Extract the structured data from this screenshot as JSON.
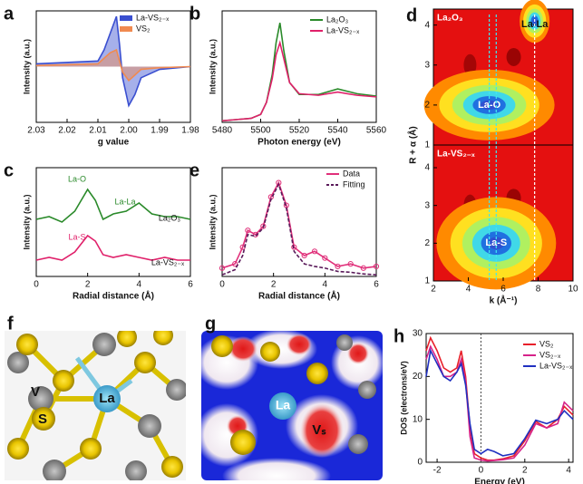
{
  "chart_data": [
    {
      "type": "line",
      "panel": "a",
      "xlabel": "g value",
      "ylabel": "Intensity (a.u.)",
      "xlim": [
        2.03,
        1.98
      ],
      "xticks": [
        2.03,
        2.02,
        2.01,
        {
          "value": 2,
          "label": "2.00"
        },
        1.99,
        1.98
      ],
      "ylim": [
        -1,
        1
      ],
      "x": [
        2.03,
        2.01,
        2.008,
        2.006,
        2.004,
        2.003,
        2.002,
        2.0,
        1.998,
        1.996,
        1.99,
        1.98
      ],
      "series": [
        {
          "name": "La-VS₂₋ₓ",
          "color": "#3a4fd0",
          "fill": true,
          "values": [
            0.05,
            0.1,
            0.3,
            0.6,
            0.9,
            0.4,
            -0.2,
            -0.7,
            -0.5,
            -0.2,
            -0.05,
            0
          ]
        },
        {
          "name": "VS₂",
          "color": "#f08a50",
          "fill": true,
          "values": [
            0.02,
            0.05,
            0.15,
            0.25,
            0.3,
            0.1,
            -0.1,
            -0.25,
            -0.15,
            -0.05,
            -0.02,
            0
          ]
        }
      ]
    },
    {
      "type": "line",
      "panel": "b",
      "xlabel": "Photon energy (eV)",
      "ylabel": "Intensity (a.u.)",
      "xlim": [
        5480,
        5560
      ],
      "xticks": [
        5480,
        5500,
        5520,
        5540,
        5560
      ],
      "ylim": [
        0,
        1.4
      ],
      "x": [
        5480,
        5495,
        5500,
        5503,
        5506,
        5508,
        5510,
        5512,
        5515,
        5520,
        5530,
        5540,
        5550,
        5560
      ],
      "series": [
        {
          "name": "La₂O₃",
          "color": "#2a8a2a",
          "values": [
            0.02,
            0.05,
            0.1,
            0.25,
            0.6,
            1.0,
            1.25,
            0.9,
            0.5,
            0.35,
            0.35,
            0.42,
            0.36,
            0.33
          ]
        },
        {
          "name": "La-VS₂₋ₓ",
          "color": "#e0206a",
          "values": [
            0.02,
            0.05,
            0.1,
            0.25,
            0.55,
            0.85,
            1.0,
            0.8,
            0.5,
            0.36,
            0.34,
            0.38,
            0.34,
            0.32
          ]
        }
      ]
    },
    {
      "type": "line",
      "panel": "c",
      "xlabel": "Radial distance (Å)",
      "ylabel": "Intensity (a.u.)",
      "xlim": [
        0,
        6
      ],
      "xticks": [
        0,
        2,
        4,
        6
      ],
      "ylim": [
        0,
        2
      ],
      "annotations": [
        "La-O",
        "La-La",
        "La-S",
        "La₂O₃",
        "La-VS₂₋ₓ"
      ],
      "x": [
        0,
        0.5,
        1,
        1.5,
        2,
        2.3,
        2.6,
        3,
        3.5,
        4,
        4.5,
        5,
        5.5,
        6
      ],
      "series": [
        {
          "color": "#2a8a2a",
          "values": [
            1.05,
            1.1,
            1.0,
            1.2,
            1.6,
            1.4,
            1.05,
            1.15,
            1.2,
            1.35,
            1.15,
            1.1,
            1.1,
            1.05
          ]
        },
        {
          "color": "#e0206a",
          "values": [
            0.3,
            0.35,
            0.3,
            0.45,
            0.75,
            0.65,
            0.4,
            0.35,
            0.4,
            0.35,
            0.3,
            0.35,
            0.3,
            0.3
          ]
        }
      ]
    },
    {
      "type": "wavelet",
      "panel": "d",
      "xlabel": "k (Å⁻¹)",
      "ylabel": "R + α (Å)",
      "xlim": [
        2,
        10
      ],
      "xticks": [
        2,
        4,
        6,
        8,
        10
      ],
      "subplots": [
        {
          "label": "La₂O₃",
          "ylim": [
            1,
            4.4
          ],
          "yticks": [
            1,
            2,
            3,
            4
          ],
          "peaks": [
            {
              "label": "La-O",
              "k": 5.2,
              "r": 2.0
            },
            {
              "label": "La-La",
              "k": 7.8,
              "r": 4.1
            }
          ]
        },
        {
          "label": "La-VS₂₋ₓ",
          "ylim": [
            1,
            4.6
          ],
          "yticks": [
            1,
            2,
            3,
            4
          ],
          "peaks": [
            {
              "label": "La-S",
              "k": 5.6,
              "r": 2.0
            }
          ]
        }
      ]
    },
    {
      "type": "line",
      "panel": "e",
      "xlabel": "Radial distance (Å)",
      "ylabel": "Intensity (a.u.)",
      "xlim": [
        0,
        6
      ],
      "xticks": [
        0,
        2,
        4,
        6
      ],
      "ylim": [
        0,
        1.3
      ],
      "x": [
        0,
        0.5,
        0.8,
        1.0,
        1.3,
        1.6,
        1.9,
        2.2,
        2.5,
        2.8,
        3.2,
        3.6,
        4,
        4.5,
        5,
        5.5,
        6
      ],
      "series": [
        {
          "name": "Data",
          "color": "#e0307a",
          "markers": true,
          "values": [
            0.1,
            0.15,
            0.35,
            0.55,
            0.5,
            0.6,
            0.95,
            1.12,
            0.85,
            0.35,
            0.25,
            0.3,
            0.22,
            0.12,
            0.15,
            0.1,
            0.12
          ]
        },
        {
          "name": "Fitting",
          "color": "#5a1a5a",
          "dash": true,
          "values": [
            0.02,
            0.08,
            0.25,
            0.5,
            0.48,
            0.58,
            0.92,
            1.1,
            0.82,
            0.3,
            0.15,
            0.12,
            0.1,
            0.06,
            0.05,
            0.03,
            0.02
          ]
        }
      ]
    },
    {
      "type": "line",
      "panel": "h",
      "xlabel": "Energy (eV)",
      "ylabel": "DOS (electrons/eV)",
      "xlim": [
        -2.5,
        4.2
      ],
      "xticks": [
        -2,
        0,
        2,
        4
      ],
      "ylim": [
        0,
        30
      ],
      "yticks": [
        0,
        10,
        20,
        30
      ],
      "x": [
        -2.5,
        -2.3,
        -2,
        -1.7,
        -1.4,
        -1.1,
        -0.9,
        -0.7,
        -0.5,
        -0.3,
        0,
        0.3,
        0.6,
        1,
        1.5,
        2,
        2.5,
        3,
        3.5,
        3.8,
        4.2
      ],
      "series": [
        {
          "name": "VS₂",
          "color": "#e8202a",
          "values": [
            26,
            29,
            26,
            22,
            21,
            22,
            26,
            20,
            8,
            2,
            1,
            0.5,
            0.5,
            0.8,
            1.5,
            5,
            9.5,
            8,
            10,
            13,
            11
          ]
        },
        {
          "name": "VS₂₋ₓ",
          "color": "#d6238a",
          "values": [
            24,
            27,
            24,
            20,
            20,
            21,
            24,
            19,
            6,
            1,
            0.5,
            0.3,
            0.4,
            0.6,
            1,
            4,
            9,
            8,
            9,
            14,
            12
          ]
        },
        {
          "name": "La-VS₂₋ₓ",
          "color": "#2030c0",
          "values": [
            20,
            26,
            23,
            20,
            19,
            21,
            23,
            18,
            9,
            3,
            2,
            3,
            2.5,
            1.5,
            2,
            5.5,
            9.8,
            9,
            10,
            12,
            10
          ]
        }
      ]
    }
  ],
  "figure_panels": [
    {
      "panel": "f",
      "labels": [
        "V",
        "S",
        "La"
      ]
    },
    {
      "panel": "g",
      "labels": [
        "La",
        "Vₛ"
      ]
    }
  ]
}
